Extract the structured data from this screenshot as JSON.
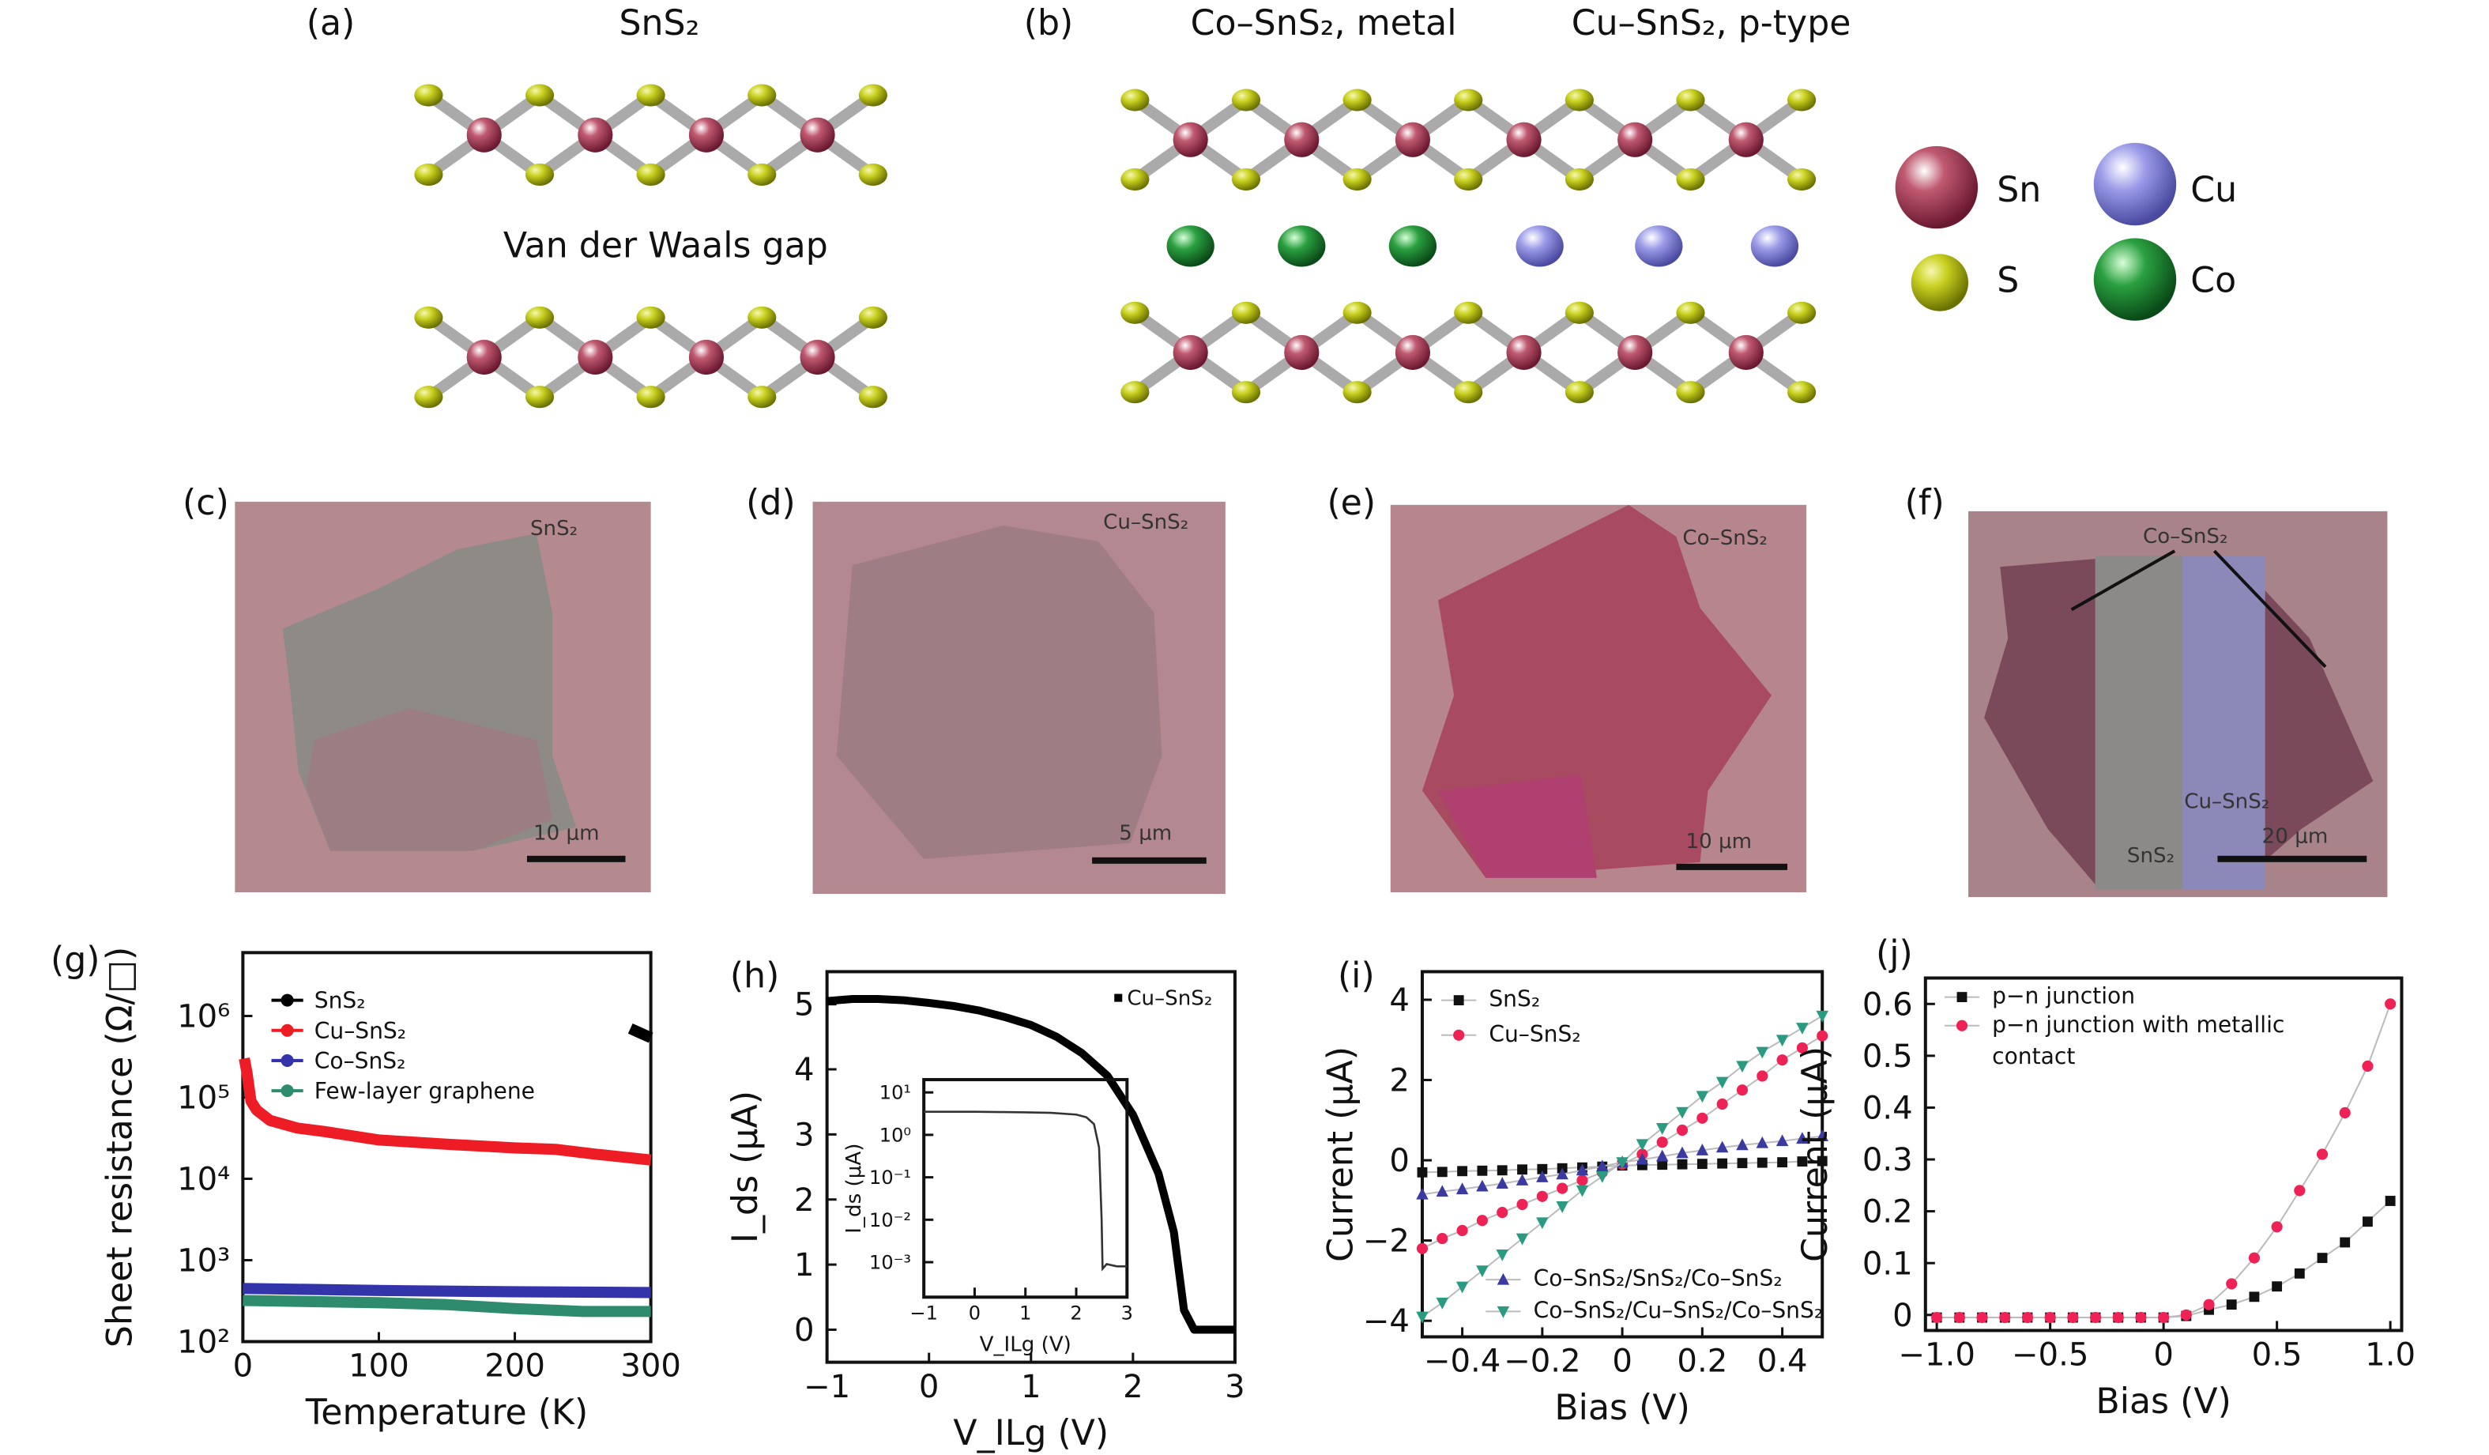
{
  "panels": {
    "a": {
      "label": "(a)",
      "title": "SnS₂",
      "gap_label": "Van der Waals gap"
    },
    "b": {
      "label": "(b)",
      "title_left": "Co–SnS₂, metal",
      "title_right": "Cu–SnS₂, p-type"
    },
    "atom_legend": [
      {
        "name": "Sn",
        "color": "#b0405a"
      },
      {
        "name": "Cu",
        "color": "#9a9ae8"
      },
      {
        "name": "S",
        "color": "#c8d020"
      },
      {
        "name": "Co",
        "color": "#2a9a40"
      }
    ],
    "c": {
      "label": "(c)",
      "tag": "SnS₂",
      "scale": "10 μm"
    },
    "d": {
      "label": "(d)",
      "tag": "Cu–SnS₂",
      "scale": "5 μm"
    },
    "e": {
      "label": "(e)",
      "tag": "Co–SnS₂",
      "scale": "10 μm"
    },
    "f": {
      "label": "(f)",
      "tag": "Co–SnS₂",
      "tag2": "Cu–SnS₂",
      "tag3": "SnS₂",
      "scale": "20 μm"
    }
  },
  "chart_data": [
    {
      "panel": "(g)",
      "type": "line",
      "xlabel": "Temperature (K)",
      "ylabel": "Sheet resistance (Ω/□)",
      "yscale": "log",
      "xlim": [
        0,
        300
      ],
      "ylim": [
        100,
        6000000
      ],
      "xticks": [
        "0",
        "100",
        "200",
        "300"
      ],
      "yticks": [
        "10²",
        "10³",
        "10⁴",
        "10⁵",
        "10⁶"
      ],
      "legend": "top-left",
      "series": [
        {
          "name": "SnS₂",
          "color": "#000000",
          "x": [
            285,
            292,
            300
          ],
          "y": [
            700000,
            620000,
            540000
          ]
        },
        {
          "name": "Cu–SnS₂",
          "color": "#ee1c24",
          "x": [
            1,
            3,
            6,
            10,
            20,
            40,
            60,
            100,
            150,
            200,
            230,
            260,
            300
          ],
          "y": [
            300000,
            200000,
            90000,
            70000,
            52000,
            42000,
            38000,
            30000,
            26500,
            24000,
            23000,
            20000,
            17000
          ]
        },
        {
          "name": "Co–SnS₂",
          "color": "#3333aa",
          "x": [
            0,
            100,
            200,
            300
          ],
          "y": [
            450,
            425,
            410,
            400
          ]
        },
        {
          "name": "Few-layer graphene",
          "color": "#2e8b6e",
          "x": [
            0,
            100,
            150,
            200,
            250,
            300
          ],
          "y": [
            320,
            300,
            285,
            255,
            235,
            235
          ]
        }
      ]
    },
    {
      "panel": "(h)",
      "type": "line",
      "xlabel": "V_ILg (V)",
      "ylabel": "I_ds (μA)",
      "xlim": [
        -1,
        3
      ],
      "ylim": [
        -0.5,
        5.5
      ],
      "xticks": [
        "−1",
        "0",
        "1",
        "2",
        "3"
      ],
      "yticks": [
        "0",
        "1",
        "2",
        "3",
        "4",
        "5"
      ],
      "legend": "top-right",
      "series": [
        {
          "name": "Cu–SnS₂",
          "color": "#000000",
          "x": [
            -1,
            -0.75,
            -0.5,
            -0.25,
            0,
            0.25,
            0.5,
            0.75,
            1,
            1.25,
            1.5,
            1.75,
            2,
            2.25,
            2.4,
            2.5,
            2.6,
            2.75,
            3
          ],
          "y": [
            5.05,
            5.08,
            5.08,
            5.06,
            5.02,
            4.97,
            4.9,
            4.8,
            4.68,
            4.5,
            4.25,
            3.9,
            3.3,
            2.4,
            1.5,
            0.3,
            0,
            0,
            0
          ]
        }
      ],
      "inset": {
        "type": "line",
        "xlabel": "V_ILg (V)",
        "ylabel": "I_ds (μA)",
        "yscale": "log",
        "xlim": [
          -1,
          3
        ],
        "ylim": [
          0.00015,
          20
        ],
        "xticks": [
          "−1",
          "0",
          "1",
          "2",
          "3"
        ],
        "yticks": [
          "10⁻³",
          "10⁻²",
          "10⁻¹",
          "10⁰",
          "10¹"
        ],
        "x": [
          -1,
          0,
          0.5,
          1,
          1.5,
          2,
          2.2,
          2.35,
          2.45,
          2.5,
          2.52,
          2.6,
          2.8,
          3
        ],
        "y": [
          3.5,
          3.5,
          3.45,
          3.4,
          3.3,
          3.0,
          2.6,
          1.8,
          0.5,
          0.01,
          0.0007,
          0.0009,
          0.0008,
          0.0008
        ]
      }
    },
    {
      "panel": "(i)",
      "type": "scatter",
      "xlabel": "Bias (V)",
      "ylabel": "Current (μA)",
      "xlim": [
        -0.5,
        0.5
      ],
      "ylim": [
        -4.4,
        4.7
      ],
      "xticks": [
        "−0.4",
        "−0.2",
        "0",
        "0.2",
        "0.4"
      ],
      "yticks": [
        "−4",
        "−2",
        "0",
        "2",
        "4"
      ],
      "x": [
        -0.5,
        -0.45,
        -0.4,
        -0.35,
        -0.3,
        -0.25,
        -0.2,
        -0.15,
        -0.1,
        -0.05,
        0,
        0.05,
        0.1,
        0.15,
        0.2,
        0.25,
        0.3,
        0.35,
        0.4,
        0.45,
        0.5
      ],
      "series": [
        {
          "name": "SnS₂",
          "color": "#111111",
          "marker": "square",
          "y": [
            -0.3,
            -0.29,
            -0.27,
            -0.26,
            -0.25,
            -0.23,
            -0.22,
            -0.2,
            -0.18,
            -0.16,
            -0.13,
            -0.12,
            -0.11,
            -0.1,
            -0.09,
            -0.08,
            -0.07,
            -0.06,
            -0.05,
            -0.03,
            -0.02
          ]
        },
        {
          "name": "Cu–SnS₂",
          "color": "#ee2255",
          "marker": "circle",
          "y": [
            -2.2,
            -1.95,
            -1.75,
            -1.5,
            -1.3,
            -1.1,
            -0.9,
            -0.7,
            -0.5,
            -0.3,
            -0.1,
            0.15,
            0.45,
            0.75,
            1.05,
            1.4,
            1.75,
            2.1,
            2.5,
            2.8,
            3.1
          ]
        },
        {
          "name": "Co–SnS₂/SnS₂/Co–SnS₂",
          "color": "#3a3aa0",
          "marker": "triangle-up",
          "y": [
            -0.85,
            -0.78,
            -0.72,
            -0.65,
            -0.58,
            -0.5,
            -0.42,
            -0.35,
            -0.25,
            -0.15,
            -0.05,
            0.02,
            0.1,
            0.18,
            0.25,
            0.32,
            0.38,
            0.43,
            0.48,
            0.54,
            0.6
          ]
        },
        {
          "name": "Co–SnS₂/Cu–SnS₂/Co–SnS₂",
          "color": "#2a9a80",
          "marker": "triangle-down",
          "y": [
            -3.9,
            -3.55,
            -3.15,
            -2.75,
            -2.35,
            -1.95,
            -1.55,
            -1.15,
            -0.75,
            -0.4,
            -0.05,
            0.4,
            0.8,
            1.2,
            1.6,
            1.95,
            2.35,
            2.7,
            3.0,
            3.3,
            3.6
          ]
        }
      ]
    },
    {
      "panel": "(j)",
      "type": "scatter",
      "xlabel": "Bias (V)",
      "ylabel": "Current (μA)",
      "xlim": [
        -1.05,
        1.05
      ],
      "ylim": [
        -0.03,
        0.65
      ],
      "xticks": [
        "−1.0",
        "−0.5",
        "0",
        "0.5",
        "1.0"
      ],
      "yticks": [
        "0",
        "0.1",
        "0.2",
        "0.3",
        "0.4",
        "0.5",
        "0.6"
      ],
      "x": [
        -1,
        -0.9,
        -0.8,
        -0.7,
        -0.6,
        -0.5,
        -0.4,
        -0.3,
        -0.2,
        -0.1,
        0,
        0.1,
        0.2,
        0.3,
        0.4,
        0.5,
        0.6,
        0.7,
        0.8,
        0.9,
        1.0
      ],
      "series": [
        {
          "name": "p−n junction",
          "color": "#111111",
          "marker": "square",
          "y": [
            -0.005,
            -0.005,
            -0.005,
            -0.005,
            -0.005,
            -0.005,
            -0.005,
            -0.005,
            -0.005,
            -0.005,
            -0.005,
            -0.002,
            0.01,
            0.02,
            0.035,
            0.055,
            0.08,
            0.11,
            0.14,
            0.18,
            0.22
          ]
        },
        {
          "name": "p−n junction with metallic contact",
          "color": "#ee2255",
          "marker": "circle",
          "y": [
            -0.005,
            -0.005,
            -0.005,
            -0.005,
            -0.005,
            -0.005,
            -0.005,
            -0.005,
            -0.005,
            -0.005,
            -0.005,
            0.0,
            0.02,
            0.06,
            0.11,
            0.17,
            0.24,
            0.31,
            0.39,
            0.48,
            0.6
          ]
        }
      ]
    }
  ]
}
